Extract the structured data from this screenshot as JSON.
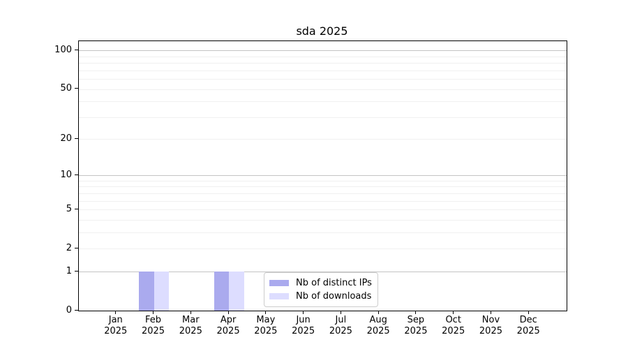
{
  "title": "sda 2025",
  "chart_data": {
    "type": "bar",
    "title": "sda 2025",
    "xlabel": "",
    "ylabel": "",
    "categories": [
      "Jan 2025",
      "Feb 2025",
      "Mar 2025",
      "Apr 2025",
      "May 2025",
      "Jun 2025",
      "Jul 2025",
      "Aug 2025",
      "Sep 2025",
      "Oct 2025",
      "Nov 2025",
      "Dec 2025"
    ],
    "series": [
      {
        "name": "Nb of distinct IPs",
        "color": "#aaaaee",
        "values": [
          0,
          1,
          0,
          1,
          0,
          0,
          0,
          0,
          0,
          0,
          0,
          0
        ]
      },
      {
        "name": "Nb of downloads",
        "color": "#ddddff",
        "values": [
          0,
          1,
          0,
          1,
          0,
          0,
          0,
          0,
          0,
          0,
          0,
          0
        ]
      }
    ],
    "yscale": "log1p",
    "ylim": [
      0,
      119
    ],
    "yticks": [
      0,
      1,
      2,
      5,
      10,
      20,
      50,
      100
    ],
    "grid": {
      "major": [
        1,
        10,
        100
      ],
      "minor": [
        2,
        3,
        4,
        5,
        6,
        7,
        8,
        9,
        20,
        30,
        40,
        50,
        60,
        70,
        80,
        90
      ]
    },
    "legend_position": "lower center inside",
    "grid_on": true
  },
  "colors": {
    "background": "#ffffff",
    "spine": "#000000",
    "grid_major": "#c4c4c4",
    "grid_minor": "#f0f0f0",
    "legend_border": "#cccccc"
  }
}
